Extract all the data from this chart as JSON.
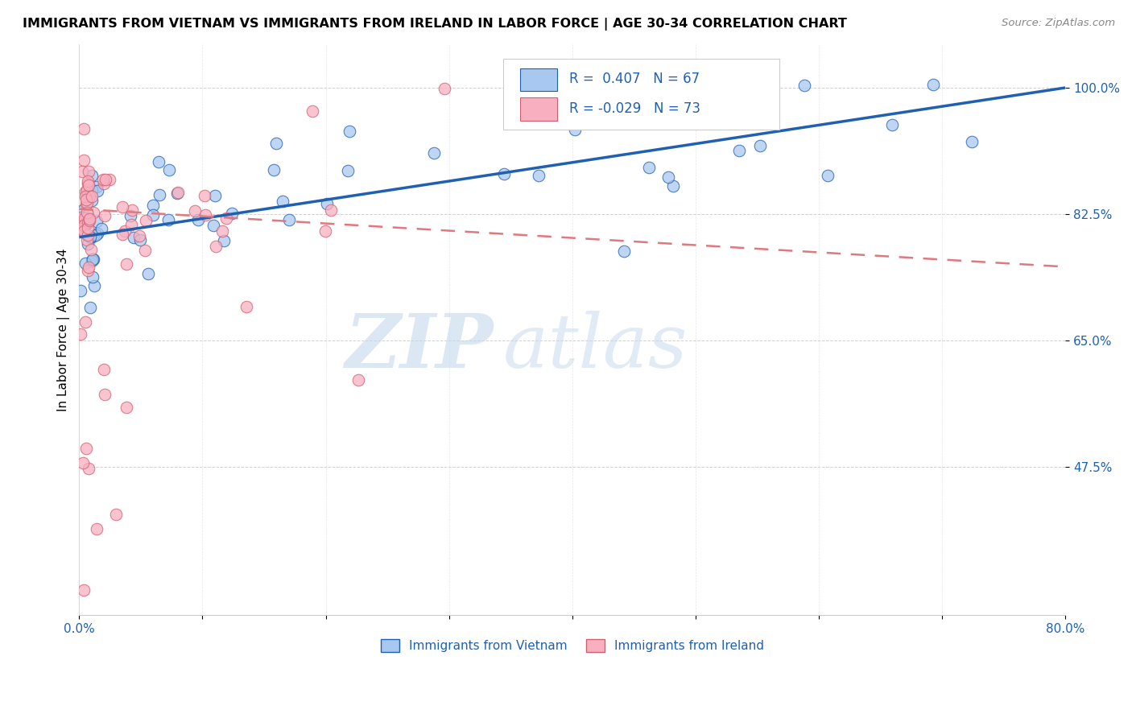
{
  "title": "IMMIGRANTS FROM VIETNAM VS IMMIGRANTS FROM IRELAND IN LABOR FORCE | AGE 30-34 CORRELATION CHART",
  "source": "Source: ZipAtlas.com",
  "ylabel": "In Labor Force | Age 30-34",
  "ytick_labels": [
    "100.0%",
    "82.5%",
    "65.0%",
    "47.5%"
  ],
  "ytick_values": [
    1.0,
    0.825,
    0.65,
    0.475
  ],
  "xlim": [
    0.0,
    0.8
  ],
  "ylim": [
    0.27,
    1.06
  ],
  "r_vietnam": 0.407,
  "n_vietnam": 67,
  "r_ireland": -0.029,
  "n_ireland": 73,
  "color_vietnam": "#a8c8f0",
  "color_ireland": "#f8b0c0",
  "line_color_vietnam": "#2060b0",
  "line_color_ireland": "#e07880",
  "watermark_zip": "ZIP",
  "watermark_atlas": "atlas",
  "legend_label_vietnam": "Immigrants from Vietnam",
  "legend_label_ireland": "Immigrants from Ireland",
  "viet_line_x0": 0.0,
  "viet_line_y0": 0.793,
  "viet_line_x1": 0.8,
  "viet_line_y1": 1.0,
  "ire_line_x0": 0.0,
  "ire_line_y0": 0.832,
  "ire_line_x1": 0.8,
  "ire_line_y1": 0.752
}
